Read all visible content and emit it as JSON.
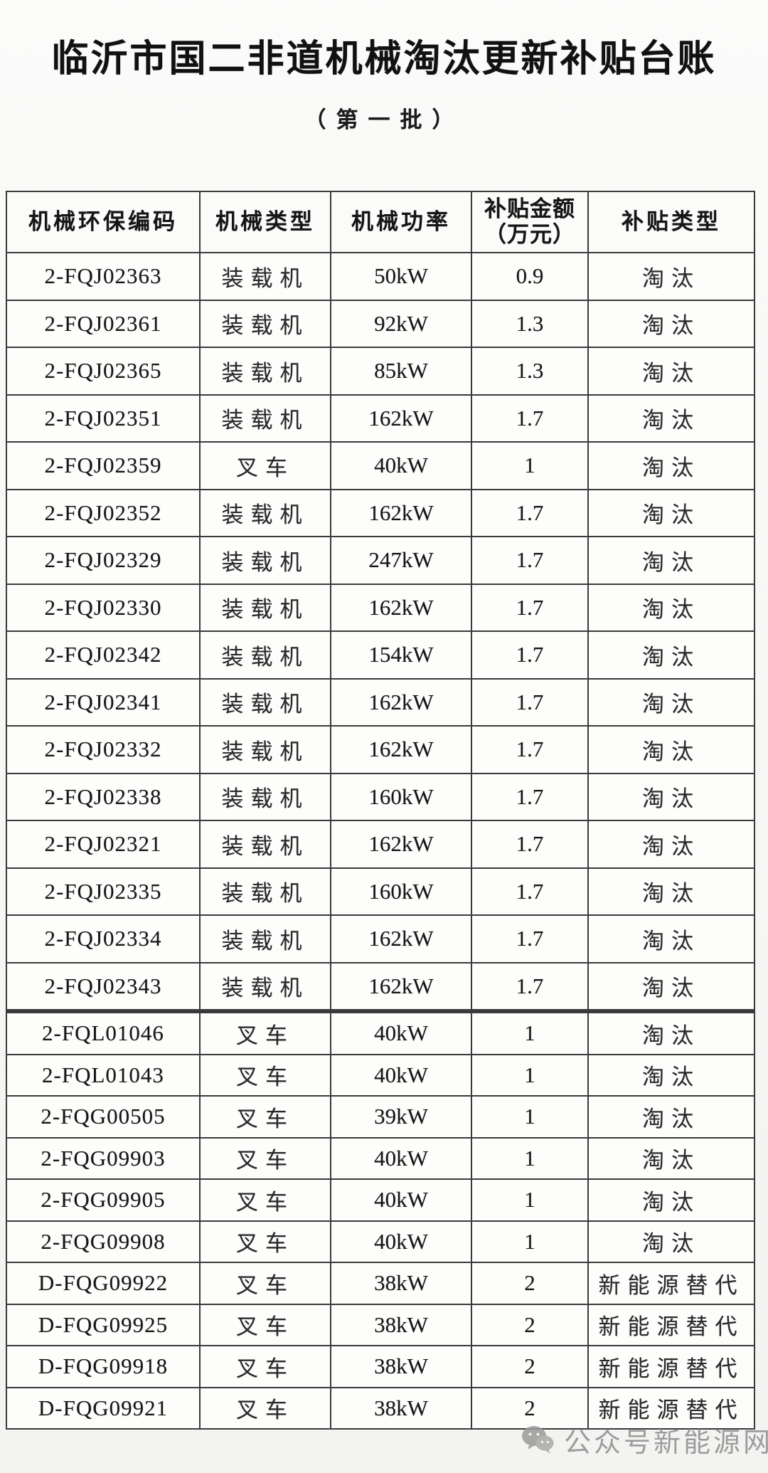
{
  "page": {
    "title": "临沂市国二非道机械淘汰更新补贴台账",
    "subtitle": "（第一批）"
  },
  "table": {
    "columns": [
      {
        "label": "机械环保编码"
      },
      {
        "label": "机械类型"
      },
      {
        "label": "机械功率"
      },
      {
        "label": "补贴金额",
        "sublabel": "（万元）"
      },
      {
        "label": "补贴类型"
      }
    ],
    "rows": [
      {
        "code": "2-FQJ02363",
        "type": "装载机",
        "power": "50kW",
        "amount": "0.9",
        "category": "淘汰",
        "section": 1
      },
      {
        "code": "2-FQJ02361",
        "type": "装载机",
        "power": "92kW",
        "amount": "1.3",
        "category": "淘汰",
        "section": 1
      },
      {
        "code": "2-FQJ02365",
        "type": "装载机",
        "power": "85kW",
        "amount": "1.3",
        "category": "淘汰",
        "section": 1
      },
      {
        "code": "2-FQJ02351",
        "type": "装载机",
        "power": "162kW",
        "amount": "1.7",
        "category": "淘汰",
        "section": 1
      },
      {
        "code": "2-FQJ02359",
        "type": "叉车",
        "power": "40kW",
        "amount": "1",
        "category": "淘汰",
        "section": 1
      },
      {
        "code": "2-FQJ02352",
        "type": "装载机",
        "power": "162kW",
        "amount": "1.7",
        "category": "淘汰",
        "section": 1
      },
      {
        "code": "2-FQJ02329",
        "type": "装载机",
        "power": "247kW",
        "amount": "1.7",
        "category": "淘汰",
        "section": 1
      },
      {
        "code": "2-FQJ02330",
        "type": "装载机",
        "power": "162kW",
        "amount": "1.7",
        "category": "淘汰",
        "section": 1
      },
      {
        "code": "2-FQJ02342",
        "type": "装载机",
        "power": "154kW",
        "amount": "1.7",
        "category": "淘汰",
        "section": 1
      },
      {
        "code": "2-FQJ02341",
        "type": "装载机",
        "power": "162kW",
        "amount": "1.7",
        "category": "淘汰",
        "section": 1
      },
      {
        "code": "2-FQJ02332",
        "type": "装载机",
        "power": "162kW",
        "amount": "1.7",
        "category": "淘汰",
        "section": 1
      },
      {
        "code": "2-FQJ02338",
        "type": "装载机",
        "power": "160kW",
        "amount": "1.7",
        "category": "淘汰",
        "section": 1
      },
      {
        "code": "2-FQJ02321",
        "type": "装载机",
        "power": "162kW",
        "amount": "1.7",
        "category": "淘汰",
        "section": 1
      },
      {
        "code": "2-FQJ02335",
        "type": "装载机",
        "power": "160kW",
        "amount": "1.7",
        "category": "淘汰",
        "section": 1
      },
      {
        "code": "2-FQJ02334",
        "type": "装载机",
        "power": "162kW",
        "amount": "1.7",
        "category": "淘汰",
        "section": 1
      },
      {
        "code": "2-FQJ02343",
        "type": "装载机",
        "power": "162kW",
        "amount": "1.7",
        "category": "淘汰",
        "section": 1
      },
      {
        "code": "2-FQL01046",
        "type": "叉车",
        "power": "40kW",
        "amount": "1",
        "category": "淘汰",
        "section": 2
      },
      {
        "code": "2-FQL01043",
        "type": "叉车",
        "power": "40kW",
        "amount": "1",
        "category": "淘汰",
        "section": 2
      },
      {
        "code": "2-FQG00505",
        "type": "叉车",
        "power": "39kW",
        "amount": "1",
        "category": "淘汰",
        "section": 2
      },
      {
        "code": "2-FQG09903",
        "type": "叉车",
        "power": "40kW",
        "amount": "1",
        "category": "淘汰",
        "section": 2
      },
      {
        "code": "2-FQG09905",
        "type": "叉车",
        "power": "40kW",
        "amount": "1",
        "category": "淘汰",
        "section": 2
      },
      {
        "code": "2-FQG09908",
        "type": "叉车",
        "power": "40kW",
        "amount": "1",
        "category": "淘汰",
        "section": 2
      },
      {
        "code": "D-FQG09922",
        "type": "叉车",
        "power": "38kW",
        "amount": "2",
        "category": "新能源替代",
        "section": 2
      },
      {
        "code": "D-FQG09925",
        "type": "叉车",
        "power": "38kW",
        "amount": "2",
        "category": "新能源替代",
        "section": 2
      },
      {
        "code": "D-FQG09918",
        "type": "叉车",
        "power": "38kW",
        "amount": "2",
        "category": "新能源替代",
        "section": 2
      },
      {
        "code": "D-FQG09921",
        "type": "叉车",
        "power": "38kW",
        "amount": "2",
        "category": "新能源替代",
        "section": 2
      }
    ]
  },
  "watermark": {
    "icon": "wechat-icon",
    "label": "公众号新能源网"
  },
  "colors": {
    "background": "#f7f7f5",
    "cell_background": "#fdfdfc",
    "border": "#3a3a3a",
    "text": "#161616",
    "watermark": "#8e8e8e"
  }
}
